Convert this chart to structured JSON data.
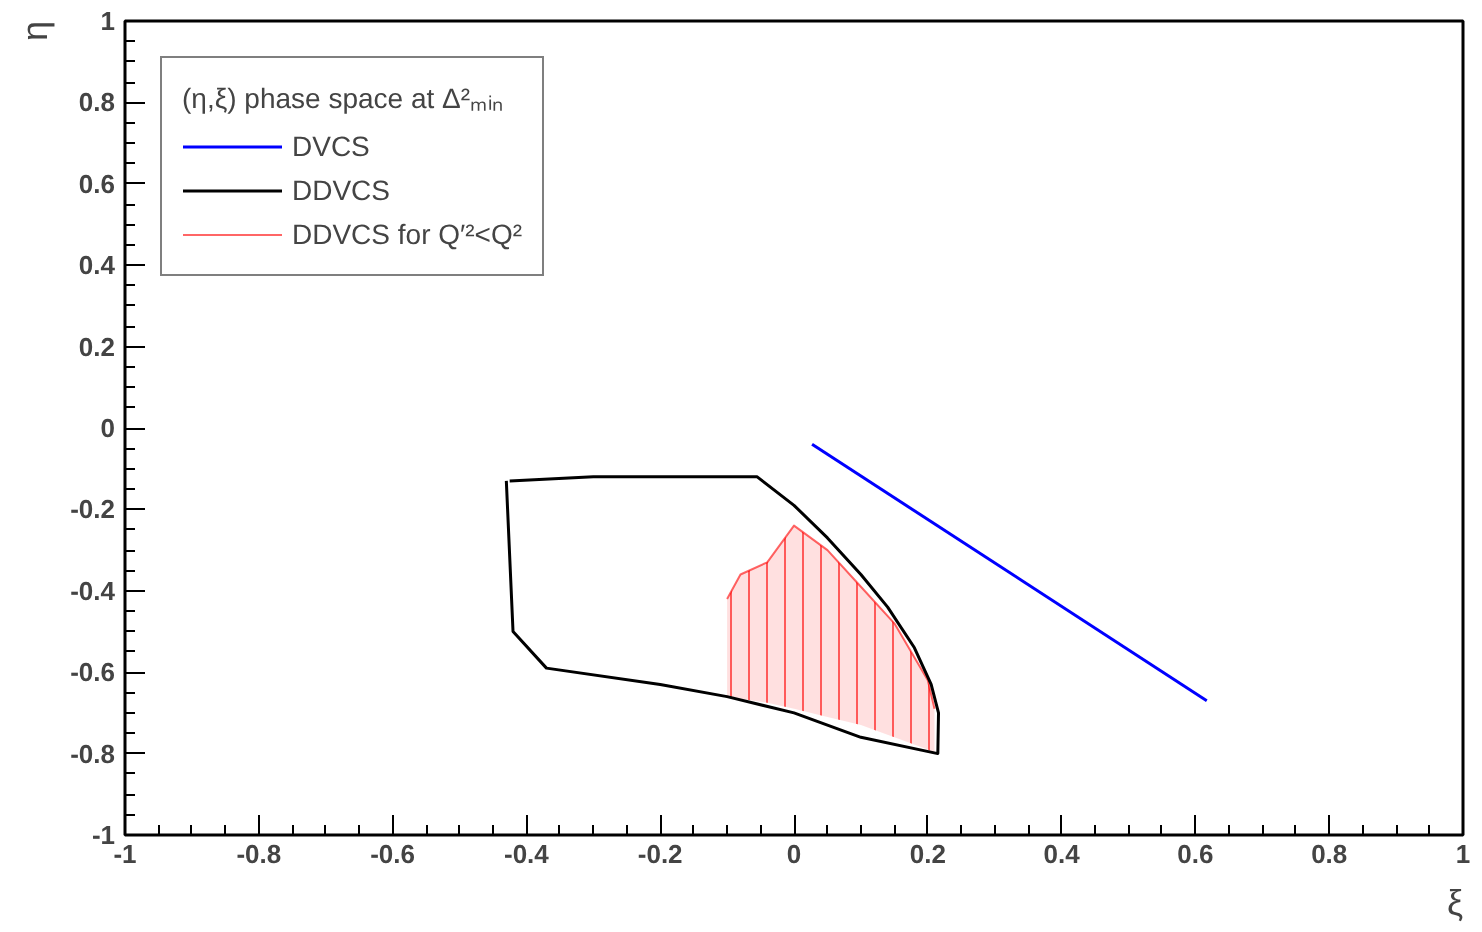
{
  "chart_data": {
    "type": "line",
    "xlabel": "ξ",
    "ylabel": "η",
    "legend_title": "(η,ξ) phase space at Δ²ₘᵢₙ",
    "xlim": [
      -1,
      1
    ],
    "ylim": [
      -1,
      1
    ],
    "xticks": [
      -1,
      -0.8,
      -0.6,
      -0.4,
      -0.2,
      0,
      0.2,
      0.4,
      0.6,
      0.8,
      1
    ],
    "yticks": [
      -1,
      -0.8,
      -0.6,
      -0.4,
      -0.2,
      0,
      0.2,
      0.4,
      0.6,
      0.8,
      1
    ],
    "grid": false,
    "legend": "top left",
    "marker": "none",
    "series": [
      {
        "name": "DVCS",
        "color": "#0000ff",
        "x": [
          0.027,
          0.617
        ],
        "values": [
          -0.04,
          -0.67
        ]
      },
      {
        "name": "DDVCS",
        "color": "#000000",
        "x": [
          -0.425,
          -0.3,
          -0.055,
          0.0,
          0.05,
          0.1,
          0.14,
          0.18,
          0.205,
          0.216,
          0.215,
          0.1,
          0.0,
          -0.1,
          -0.2,
          -0.37,
          -0.42,
          -0.43
        ],
        "values": [
          -0.13,
          -0.12,
          -0.12,
          -0.19,
          -0.27,
          -0.36,
          -0.44,
          -0.54,
          -0.63,
          -0.7,
          -0.8,
          -0.76,
          -0.7,
          -0.66,
          -0.63,
          -0.59,
          -0.5,
          -0.13
        ]
      },
      {
        "name": "DDVCS for Q′²<Q²",
        "color": "#ff0000",
        "x": [
          -0.1,
          -0.08,
          -0.04,
          0.0,
          0.05,
          0.1,
          0.15,
          0.2,
          0.21
        ],
        "values": [
          -0.42,
          -0.36,
          -0.33,
          -0.24,
          -0.3,
          -0.39,
          -0.48,
          -0.62,
          -0.69
        ],
        "upper": [
          -0.42,
          -0.36,
          -0.33,
          -0.24,
          -0.3,
          -0.39,
          -0.48,
          -0.62,
          -0.69
        ],
        "lower": [
          -0.66,
          -0.665,
          -0.675,
          -0.69,
          -0.71,
          -0.73,
          -0.76,
          -0.79,
          -0.8
        ]
      }
    ]
  }
}
